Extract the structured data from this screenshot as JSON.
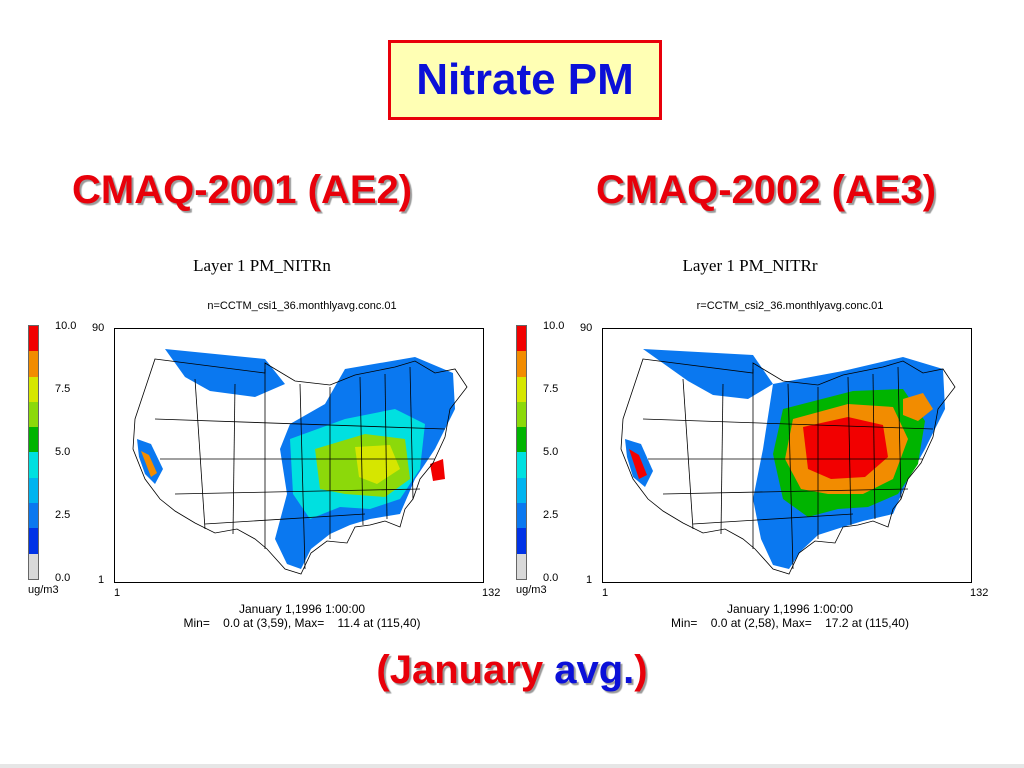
{
  "title": "Nitrate PM",
  "footer": {
    "open": "(",
    "word1": "January",
    "word2": "avg.",
    "close": ")"
  },
  "colorbar": {
    "colors": [
      "#f20000",
      "#f28c00",
      "#d6e600",
      "#8cd90a",
      "#00b400",
      "#00e0e0",
      "#00b4f0",
      "#0a78f0",
      "#0032e6",
      "#d9d9d9"
    ],
    "ticks": [
      "10.0",
      "7.5",
      "5.0",
      "2.5",
      "0.0"
    ],
    "unit": "ug/m3"
  },
  "panels": [
    {
      "heading": "CMAQ-2001 (AE2)",
      "layer": "Layer 1  PM_NITRn",
      "file": "n=CCTM_csi1_36.monthlyavg.conc.01",
      "y_top": "90",
      "y_bottom": "1",
      "x_left": "1",
      "x_right": "132",
      "date": "January 1,1996 1:00:00",
      "minmax": "Min=    0.0 at (3,59), Max=    11.4 at (115,40)",
      "intensity": "low"
    },
    {
      "heading": "CMAQ-2002 (AE3)",
      "layer": "Layer 1  PM_NITRr",
      "file": "r=CCTM_csi2_36.monthlyavg.conc.01",
      "y_top": "90",
      "y_bottom": "1",
      "x_left": "1",
      "x_right": "132",
      "date": "January 1,1996 1:00:00",
      "minmax": "Min=    0.0 at (2,58), Max=    17.2 at (115,40)",
      "intensity": "high"
    }
  ]
}
